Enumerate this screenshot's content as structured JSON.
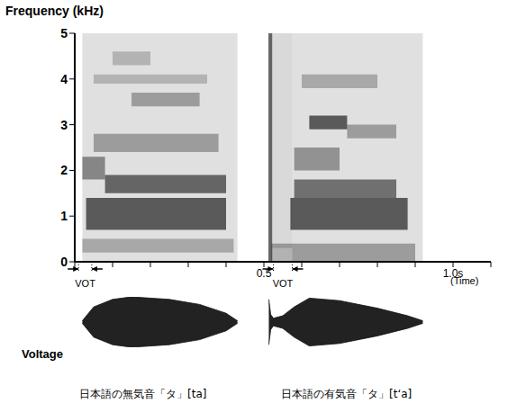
{
  "chart_data": {
    "type": "spectrogram",
    "y_label": "Frequency (kHz)",
    "x_label": "(Time)",
    "xlim": [
      0,
      1.1
    ],
    "xticks": [
      0.5,
      {
        "value": 1,
        "label": "1.0s"
      }
    ],
    "x_minor_ticks": [
      0,
      0.1,
      0.2,
      0.3,
      0.4,
      0.5,
      0.6,
      0.7,
      0.8,
      0.9,
      1,
      1.1
    ],
    "ylim": [
      0,
      5
    ],
    "yticks": [
      0,
      1,
      2,
      3,
      4,
      5
    ],
    "bands": [
      {
        "x1": 0.02,
        "x2": 0.43,
        "y1": 0,
        "y2": 5,
        "intensity": 0.12
      },
      {
        "x1": 0.02,
        "x2": 0.42,
        "y1": 0.2,
        "y2": 0.5,
        "intensity": 0.25
      },
      {
        "x1": 0.03,
        "x2": 0.4,
        "y1": 0.7,
        "y2": 1.4,
        "intensity": 0.6
      },
      {
        "x1": 0.08,
        "x2": 0.4,
        "y1": 1.5,
        "y2": 1.9,
        "intensity": 0.55
      },
      {
        "x1": 0.02,
        "x2": 0.08,
        "y1": 1.8,
        "y2": 2.3,
        "intensity": 0.4
      },
      {
        "x1": 0.05,
        "x2": 0.38,
        "y1": 2.4,
        "y2": 2.8,
        "intensity": 0.3
      },
      {
        "x1": 0.15,
        "x2": 0.33,
        "y1": 3.4,
        "y2": 3.7,
        "intensity": 0.3
      },
      {
        "x1": 0.05,
        "x2": 0.35,
        "y1": 3.9,
        "y2": 4.1,
        "intensity": 0.2
      },
      {
        "x1": 0.1,
        "x2": 0.2,
        "y1": 4.3,
        "y2": 4.6,
        "intensity": 0.2
      },
      {
        "x1": 0.512,
        "x2": 0.522,
        "y1": 0,
        "y2": 5,
        "intensity": 0.6
      },
      {
        "x1": 0.522,
        "x2": 0.575,
        "y1": 0.3,
        "y2": 5,
        "intensity": 0.15
      },
      {
        "x1": 0.575,
        "x2": 0.92,
        "y1": 0,
        "y2": 5,
        "intensity": 0.12
      },
      {
        "x1": 0.52,
        "x2": 0.9,
        "y1": 0,
        "y2": 0.4,
        "intensity": 0.3
      },
      {
        "x1": 0.57,
        "x2": 0.88,
        "y1": 0.7,
        "y2": 1.4,
        "intensity": 0.6
      },
      {
        "x1": 0.58,
        "x2": 0.85,
        "y1": 1.4,
        "y2": 1.8,
        "intensity": 0.5
      },
      {
        "x1": 0.58,
        "x2": 0.7,
        "y1": 2.0,
        "y2": 2.5,
        "intensity": 0.35
      },
      {
        "x1": 0.62,
        "x2": 0.72,
        "y1": 2.9,
        "y2": 3.2,
        "intensity": 0.6
      },
      {
        "x1": 0.72,
        "x2": 0.85,
        "y1": 2.7,
        "y2": 3.0,
        "intensity": 0.3
      },
      {
        "x1": 0.6,
        "x2": 0.8,
        "y1": 3.8,
        "y2": 4.1,
        "intensity": 0.25
      }
    ],
    "annotations": [
      {
        "text": "VOT",
        "x_start": 0.01,
        "x_end": 0.045
      },
      {
        "text": "VOT",
        "x_start": 0.525,
        "x_end": 0.575
      }
    ],
    "waveform": {
      "label": "Voltage",
      "ylim": [
        -1,
        1
      ],
      "x": [
        0.02,
        0.05,
        0.1,
        0.15,
        0.25,
        0.33,
        0.4,
        0.43,
        0.47,
        0.513,
        0.518,
        0.525,
        0.55,
        0.58,
        0.62,
        0.7,
        0.8,
        0.88,
        0.92
      ],
      "amplitude": [
        0.05,
        0.6,
        0.9,
        1.0,
        0.9,
        0.7,
        0.35,
        0.05,
        null,
        0.9,
        0.3,
        0.15,
        0.25,
        0.6,
        0.95,
        0.85,
        0.55,
        0.25,
        0.05
      ]
    },
    "captions": [
      "日本語の無気音「タ」[ta]",
      "日本語の有気音「タ」[t‘a]"
    ]
  }
}
